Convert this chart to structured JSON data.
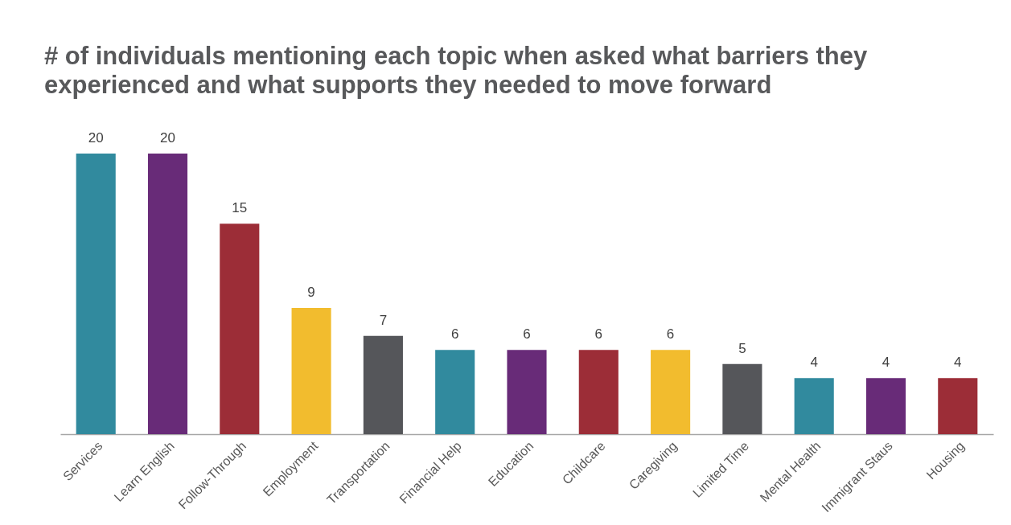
{
  "chart_data": {
    "type": "bar",
    "title": "# of individuals mentioning each topic when asked what barriers they experienced and what supports they needed to move forward",
    "categories": [
      "Services",
      "Learn English",
      "Follow-Through",
      "Employment",
      "Transportation",
      "Financial Help",
      "Education",
      "Childcare",
      "Caregiving",
      "Limited Time",
      "Mental Health",
      "Immigrant Staus",
      "Housing"
    ],
    "values": [
      20,
      20,
      15,
      9,
      7,
      6,
      6,
      6,
      6,
      5,
      4,
      4,
      4
    ],
    "colors": [
      "#318a9e",
      "#682b78",
      "#9c2d37",
      "#f2bc2e",
      "#55565a",
      "#318a9e",
      "#682b78",
      "#9c2d37",
      "#f2bc2e",
      "#55565a",
      "#318a9e",
      "#682b78",
      "#9c2d37"
    ],
    "ylim": [
      0,
      20
    ],
    "data_labels": true,
    "grid": false,
    "tick_labels": "x"
  }
}
